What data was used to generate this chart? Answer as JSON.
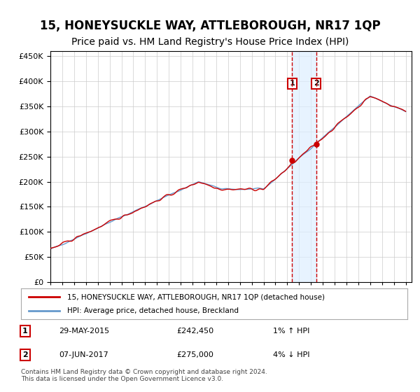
{
  "title": "15, HONEYSUCKLE WAY, ATTLEBOROUGH, NR17 1QP",
  "subtitle": "Price paid vs. HM Land Registry's House Price Index (HPI)",
  "legend_line1": "15, HONEYSUCKLE WAY, ATTLEBOROUGH, NR17 1QP (detached house)",
  "legend_line2": "HPI: Average price, detached house, Breckland",
  "annotation_text": "Contains HM Land Registry data © Crown copyright and database right 2024.\nThis data is licensed under the Open Government Licence v3.0.",
  "sale1_date": "29-MAY-2015",
  "sale1_price": 242450,
  "sale1_hpi": "1% ↑ HPI",
  "sale2_date": "07-JUN-2017",
  "sale2_price": 275000,
  "sale2_hpi": "4% ↓ HPI",
  "ylim_min": 0,
  "ylim_max": 460000,
  "background_color": "#ffffff",
  "plot_bg_color": "#ffffff",
  "grid_color": "#cccccc",
  "hpi_line_color": "#6699cc",
  "price_line_color": "#cc0000",
  "sale_marker_color": "#cc0000",
  "sale_box_color": "#cc0000",
  "shade_color": "#ddeeff",
  "dashed_line_color": "#cc0000",
  "title_fontsize": 12,
  "subtitle_fontsize": 10
}
